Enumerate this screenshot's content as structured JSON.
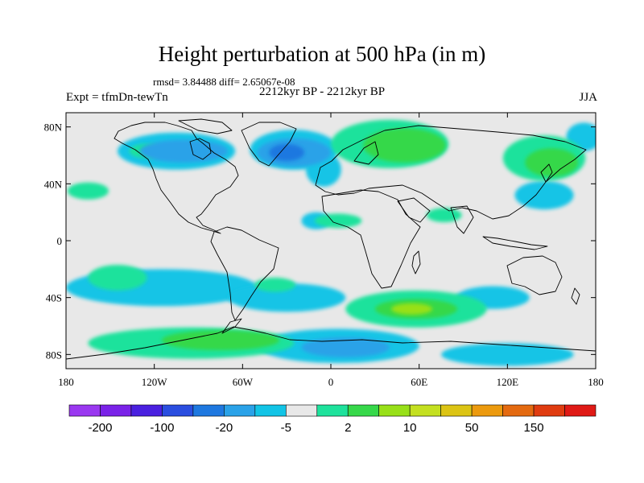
{
  "header": {
    "title": "Height perturbation at 500 hPa (in m)",
    "stats": "rmsd= 3.84488  diff= 2.65067e-08",
    "subtitle": "2212kyr BP - 2212kyr BP",
    "left_label": "Expt = tfmDn-tewTn",
    "right_label": "JJA"
  },
  "chart_data": {
    "type": "heatmap",
    "projection": "cylindrical equidistant",
    "xlim": [
      -180,
      180
    ],
    "ylim": [
      -90,
      90
    ],
    "x_ticks": [
      {
        "value": -180,
        "label": "180"
      },
      {
        "value": -120,
        "label": "120W"
      },
      {
        "value": -60,
        "label": "60W"
      },
      {
        "value": 0,
        "label": "0"
      },
      {
        "value": 60,
        "label": "60E"
      },
      {
        "value": 120,
        "label": "120E"
      },
      {
        "value": 180,
        "label": "180"
      }
    ],
    "y_ticks": [
      {
        "value": 80,
        "label": "80N"
      },
      {
        "value": 40,
        "label": "40N"
      },
      {
        "value": 0,
        "label": "0"
      },
      {
        "value": -40,
        "label": "40S"
      },
      {
        "value": -80,
        "label": "80S"
      }
    ],
    "colorbar": {
      "colors": [
        "#9a38f0",
        "#7a22e8",
        "#4a20e0",
        "#2a4ee0",
        "#1e78e0",
        "#2aa2e8",
        "#12c4e6",
        "#e8e8e8",
        "#1ee29c",
        "#36d84a",
        "#98e018",
        "#c4e020",
        "#dcc414",
        "#ec9a0e",
        "#e46a10",
        "#e03c10",
        "#e01a16"
      ],
      "labels": [
        {
          "after_index": 0,
          "text": "-200"
        },
        {
          "after_index": 2,
          "text": "-100"
        },
        {
          "after_index": 4,
          "text": "-20"
        },
        {
          "after_index": 6,
          "text": "-5"
        },
        {
          "after_index": 8,
          "text": "2"
        },
        {
          "after_index": 10,
          "text": "10"
        },
        {
          "after_index": 12,
          "text": "50"
        },
        {
          "after_index": 14,
          "text": "150"
        }
      ]
    },
    "regions": [
      {
        "sign": "neg",
        "level": 1,
        "lon": -105,
        "lat": 63,
        "rlon": 40,
        "rlat": 13
      },
      {
        "sign": "neg",
        "level": 1,
        "lon": -25,
        "lat": 64,
        "rlon": 30,
        "rlat": 14
      },
      {
        "sign": "neg",
        "level": 1,
        "lon": -5,
        "lat": 50,
        "rlon": 12,
        "rlat": 12
      },
      {
        "sign": "neg",
        "level": 1,
        "lon": 145,
        "lat": 32,
        "rlon": 20,
        "rlat": 10
      },
      {
        "sign": "neg",
        "level": 1,
        "lon": 172,
        "lat": 73,
        "rlon": 12,
        "rlat": 10
      },
      {
        "sign": "neg",
        "level": 1,
        "lon": -115,
        "lat": -33,
        "rlon": 65,
        "rlat": 13
      },
      {
        "sign": "neg",
        "level": 1,
        "lon": -30,
        "lat": -40,
        "rlon": 40,
        "rlat": 10
      },
      {
        "sign": "neg",
        "level": 1,
        "lon": 110,
        "lat": -40,
        "rlon": 25,
        "rlat": 8
      },
      {
        "sign": "neg",
        "level": 1,
        "lon": 5,
        "lat": -74,
        "rlon": 55,
        "rlat": 12
      },
      {
        "sign": "neg",
        "level": 1,
        "lon": 120,
        "lat": -80,
        "rlon": 45,
        "rlat": 8
      },
      {
        "sign": "neg",
        "level": 1,
        "lon": -10,
        "lat": 14,
        "rlon": 10,
        "rlat": 6
      },
      {
        "sign": "neg",
        "level": 2,
        "lon": -100,
        "lat": 63,
        "rlon": 30,
        "rlat": 8
      },
      {
        "sign": "neg",
        "level": 2,
        "lon": -25,
        "lat": 62,
        "rlon": 25,
        "rlat": 10
      },
      {
        "sign": "neg",
        "level": 2,
        "lon": 10,
        "lat": -75,
        "rlon": 30,
        "rlat": 7
      },
      {
        "sign": "neg",
        "level": 3,
        "lon": -30,
        "lat": 62,
        "rlon": 12,
        "rlat": 6
      },
      {
        "sign": "pos",
        "level": 1,
        "lon": 40,
        "lat": 68,
        "rlon": 40,
        "rlat": 17
      },
      {
        "sign": "pos",
        "level": 1,
        "lon": 145,
        "lat": 58,
        "rlon": 28,
        "rlat": 16
      },
      {
        "sign": "pos",
        "level": 1,
        "lon": -125,
        "lat": 63,
        "rlon": 12,
        "rlat": 5
      },
      {
        "sign": "pos",
        "level": 1,
        "lon": -165,
        "lat": 35,
        "rlon": 14,
        "rlat": 6
      },
      {
        "sign": "pos",
        "level": 1,
        "lon": -145,
        "lat": -26,
        "rlon": 20,
        "rlat": 9
      },
      {
        "sign": "pos",
        "level": 1,
        "lon": -38,
        "lat": -31,
        "rlon": 14,
        "rlat": 5
      },
      {
        "sign": "pos",
        "level": 1,
        "lon": 5,
        "lat": 14,
        "rlon": 16,
        "rlat": 5
      },
      {
        "sign": "pos",
        "level": 1,
        "lon": 77,
        "lat": 18,
        "rlon": 12,
        "rlat": 5
      },
      {
        "sign": "pos",
        "level": 1,
        "lon": 58,
        "lat": -48,
        "rlon": 48,
        "rlat": 13
      },
      {
        "sign": "pos",
        "level": 1,
        "lon": -95,
        "lat": -72,
        "rlon": 70,
        "rlat": 11
      },
      {
        "sign": "pos",
        "level": 2,
        "lon": 50,
        "lat": 67,
        "rlon": 28,
        "rlat": 12
      },
      {
        "sign": "pos",
        "level": 2,
        "lon": 150,
        "lat": 55,
        "rlon": 18,
        "rlat": 10
      },
      {
        "sign": "pos",
        "level": 2,
        "lon": 58,
        "lat": -48,
        "rlon": 28,
        "rlat": 7
      },
      {
        "sign": "pos",
        "level": 2,
        "lon": -75,
        "lat": -70,
        "rlon": 40,
        "rlat": 7
      },
      {
        "sign": "pos",
        "level": 3,
        "lon": 55,
        "lat": -48,
        "rlon": 14,
        "rlat": 4
      }
    ]
  }
}
